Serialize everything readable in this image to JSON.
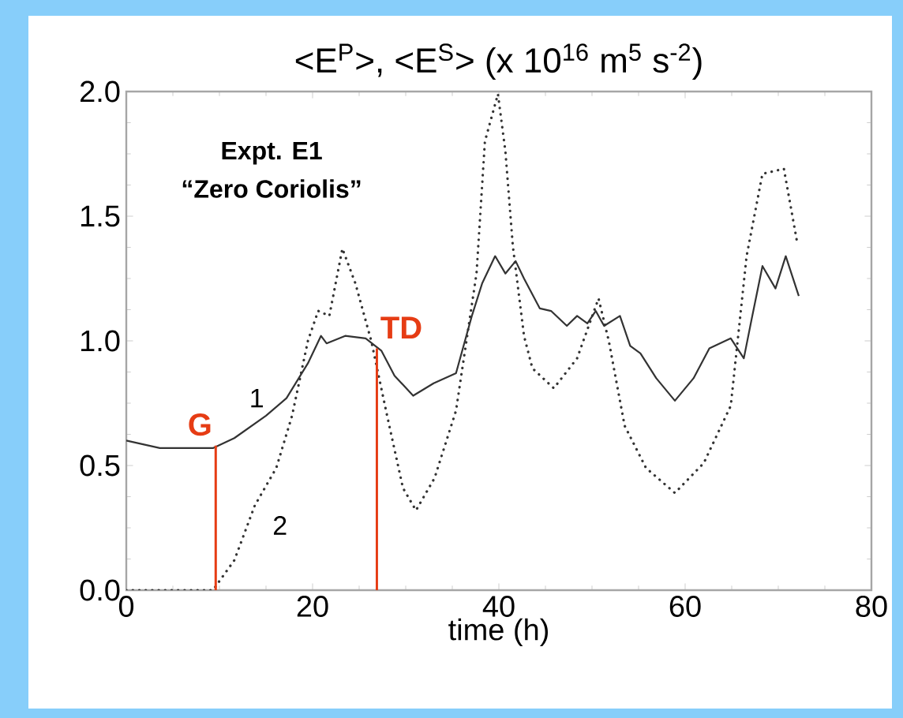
{
  "chart_data": {
    "type": "line",
    "title": "<E$^{P}$>, <E$^{S}$> (x 10$^{16}$ m$^{5}$ s$^{-2}$)",
    "xlabel": "time (h)",
    "xlim": [
      0,
      80
    ],
    "xticks": [
      0,
      20,
      40,
      60,
      80
    ],
    "ylim": [
      0,
      2.0
    ],
    "yticks": [
      {
        "value": 0,
        "label": "0.0"
      },
      {
        "value": 0.5,
        "label": "0.5"
      },
      {
        "value": 1.0,
        "label": "1.0"
      },
      {
        "value": 1.5,
        "label": "1.5"
      },
      {
        "value": 2.0,
        "label": "2.0"
      }
    ],
    "grid": false,
    "legend": false,
    "marker": "none",
    "annotations": [
      "**Expt. E1**",
      "**“Zero Coriolis”**",
      {
        "text": "G",
        "x": 9.6,
        "y": 0.58
      },
      {
        "text": "TD",
        "x": 26.9,
        "y": 0.97
      }
    ],
    "series": [
      {
        "name": "1",
        "color": "#333333",
        "line_style": "solid",
        "x": [
          0,
          3.6,
          9.3,
          11.6,
          15,
          17.2,
          19.5,
          20.9,
          21.5,
          23.5,
          25.7,
          27.4,
          28.8,
          30.8,
          33,
          35.4,
          37.1,
          38.2,
          39.6,
          40.7,
          41.8,
          42.7,
          44.4,
          45.6,
          47.3,
          48.4,
          49.5,
          50.4,
          51.3,
          53,
          54.1,
          55.2,
          56.9,
          58.9,
          60.9,
          62.6,
          64.9,
          66.3,
          67.1,
          68.3,
          69.7,
          70.8,
          72.2
        ],
        "values": [
          0.6,
          0.57,
          0.57,
          0.61,
          0.7,
          0.77,
          0.91,
          1.02,
          0.99,
          1.02,
          1.01,
          0.96,
          0.86,
          0.78,
          0.83,
          0.87,
          1.1,
          1.23,
          1.34,
          1.27,
          1.32,
          1.25,
          1.13,
          1.12,
          1.06,
          1.1,
          1.07,
          1.12,
          1.06,
          1.1,
          0.98,
          0.95,
          0.85,
          0.76,
          0.85,
          0.97,
          1.01,
          0.93,
          1.08,
          1.3,
          1.21,
          1.34,
          1.18
        ]
      },
      {
        "name": "2",
        "color": "#333333",
        "line_style": "dotted",
        "x": [
          0,
          9.3,
          11.6,
          13.8,
          16.1,
          17.8,
          19.5,
          20.6,
          21.8,
          23.2,
          24.6,
          26.3,
          28,
          29.7,
          31.1,
          33.1,
          35.4,
          37.6,
          38.5,
          39.9,
          40.7,
          41.5,
          42.7,
          43.6,
          45.9,
          48.4,
          50.7,
          51.8,
          53.5,
          55.8,
          58.9,
          62,
          64.9,
          66.6,
          68.3,
          70.6,
          72
        ],
        "values": [
          0.0,
          0.0,
          0.12,
          0.34,
          0.49,
          0.7,
          1.0,
          1.12,
          1.1,
          1.37,
          1.23,
          1.0,
          0.7,
          0.41,
          0.32,
          0.45,
          0.72,
          1.27,
          1.8,
          1.99,
          1.76,
          1.38,
          1.02,
          0.89,
          0.81,
          0.93,
          1.17,
          1.0,
          0.66,
          0.49,
          0.39,
          0.51,
          0.74,
          1.34,
          1.67,
          1.69,
          1.4
        ]
      }
    ]
  }
}
